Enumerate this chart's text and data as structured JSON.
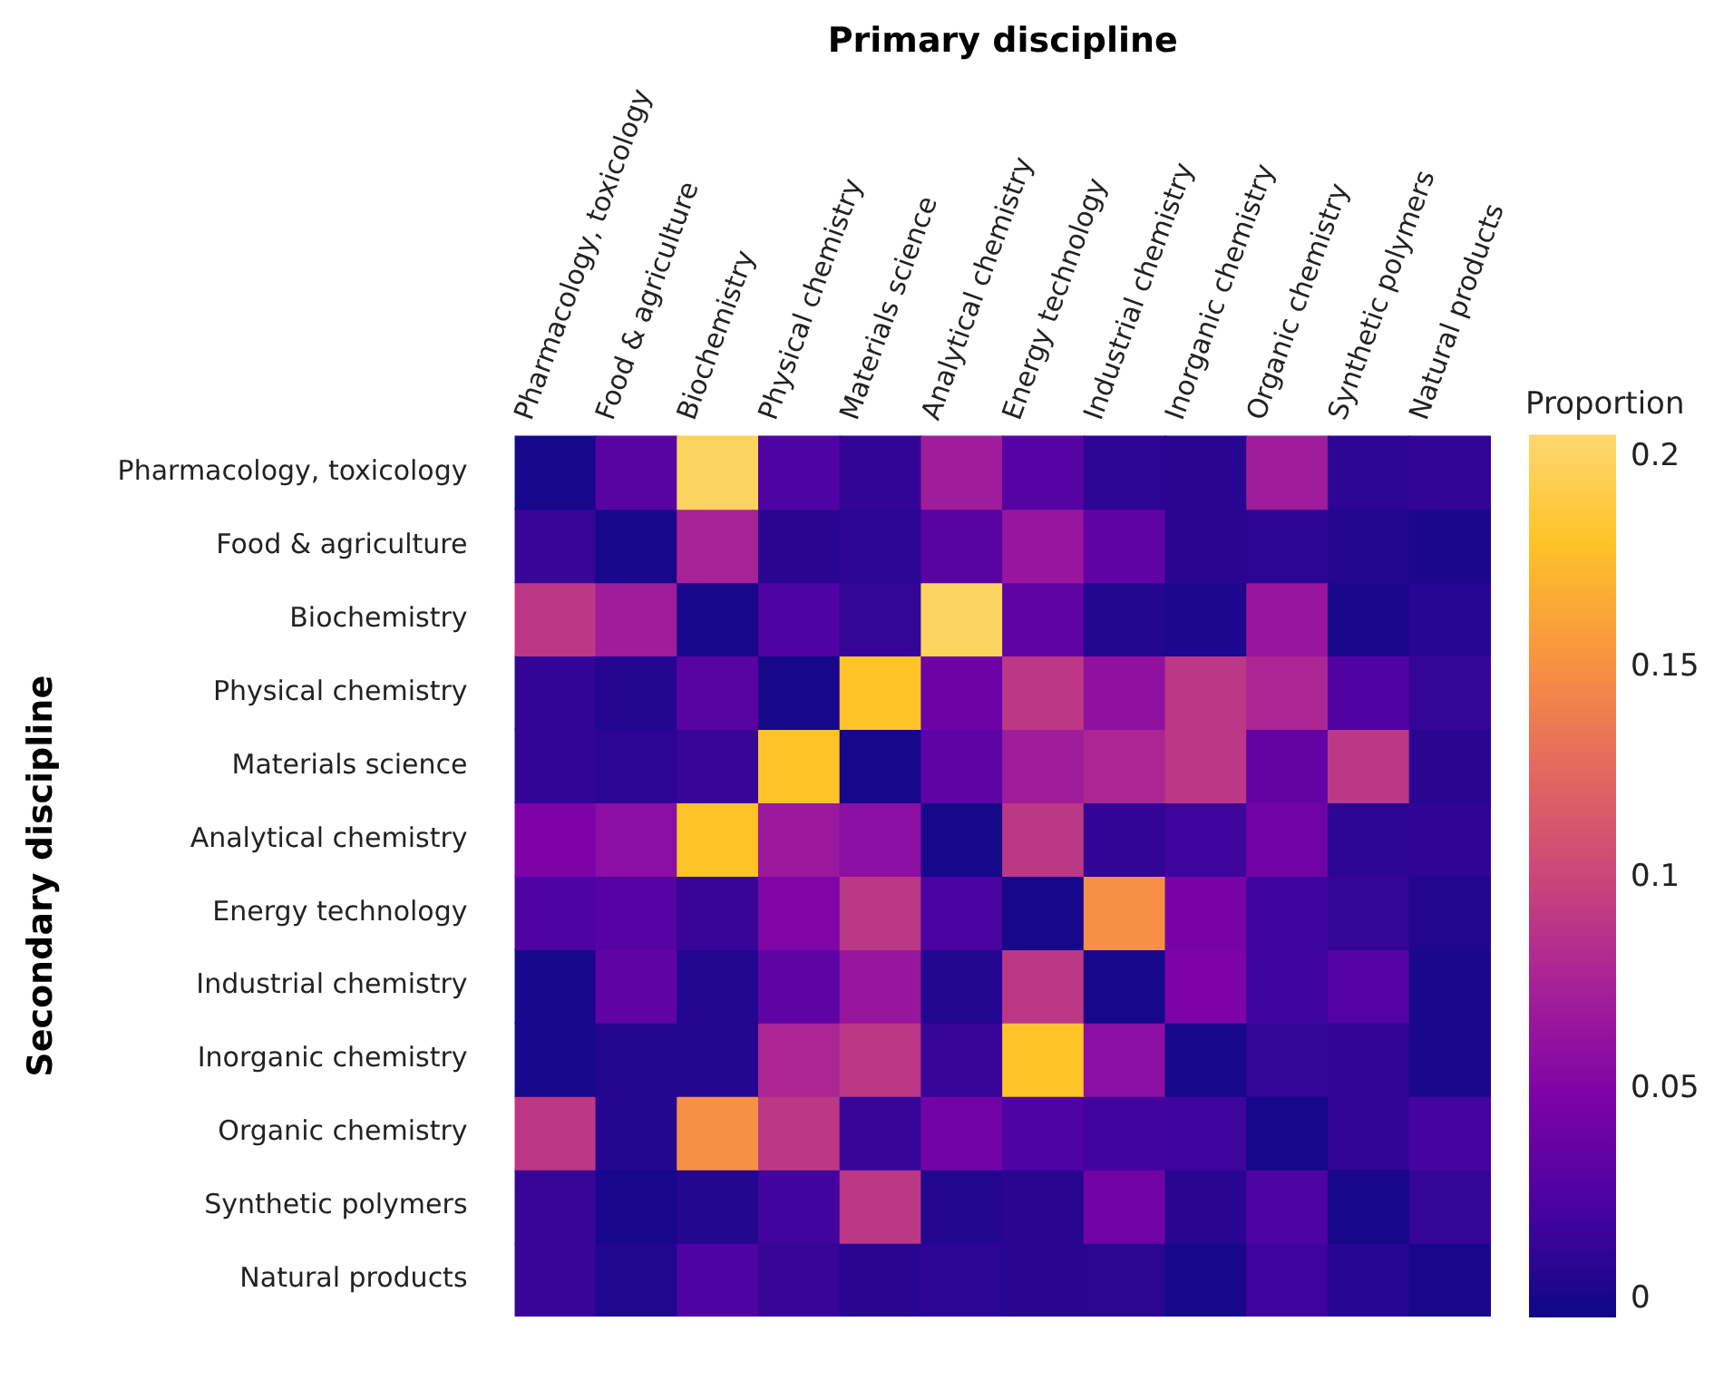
{
  "chart_data": {
    "type": "heatmap",
    "xlabel": "Primary discipline",
    "ylabel": "Secondary discipline",
    "clabel": "Proportion",
    "categories": [
      "Pharmacology, toxicology",
      "Food & agriculture",
      "Biochemistry",
      "Physical chemistry",
      "Materials science",
      "Analytical chemistry",
      "Energy technology",
      "Industrial chemistry",
      "Inorganic chemistry",
      "Organic chemistry",
      "Synthetic polymers",
      "Natural products"
    ],
    "y_categories": [
      "Pharmacology, toxicology",
      "Food & agriculture",
      "Biochemistry",
      "Physical chemistry",
      "Materials science",
      "Analytical chemistry",
      "Energy technology",
      "Industrial chemistry",
      "Inorganic chemistry",
      "Organic chemistry",
      "Synthetic polymers",
      "Natural products"
    ],
    "cells": [
      [
        0.0,
        0.03,
        0.2,
        0.025,
        0.012,
        0.07,
        0.028,
        0.01,
        0.008,
        0.07,
        0.01,
        0.012
      ],
      [
        0.015,
        0.0,
        0.075,
        0.008,
        0.01,
        0.03,
        0.065,
        0.033,
        0.008,
        0.01,
        0.006,
        0.002
      ],
      [
        0.09,
        0.07,
        0.0,
        0.025,
        0.013,
        0.2,
        0.033,
        0.006,
        0.003,
        0.065,
        0.001,
        0.007
      ],
      [
        0.012,
        0.006,
        0.03,
        0.0,
        0.18,
        0.04,
        0.09,
        0.06,
        0.09,
        0.078,
        0.026,
        0.013
      ],
      [
        0.012,
        0.01,
        0.015,
        0.18,
        0.0,
        0.033,
        0.07,
        0.078,
        0.09,
        0.035,
        0.09,
        0.008
      ],
      [
        0.048,
        0.058,
        0.18,
        0.067,
        0.058,
        0.0,
        0.09,
        0.012,
        0.018,
        0.042,
        0.01,
        0.011
      ],
      [
        0.025,
        0.028,
        0.015,
        0.05,
        0.09,
        0.022,
        0.0,
        0.15,
        0.045,
        0.018,
        0.013,
        0.005
      ],
      [
        0.0,
        0.033,
        0.005,
        0.033,
        0.065,
        0.005,
        0.09,
        0.0,
        0.048,
        0.018,
        0.027,
        0.002
      ],
      [
        0.0,
        0.005,
        0.005,
        0.078,
        0.09,
        0.015,
        0.18,
        0.058,
        0.0,
        0.013,
        0.012,
        0.002
      ],
      [
        0.09,
        0.006,
        0.15,
        0.09,
        0.015,
        0.042,
        0.025,
        0.019,
        0.018,
        0.0,
        0.012,
        0.021
      ],
      [
        0.015,
        0.001,
        0.006,
        0.019,
        0.09,
        0.005,
        0.008,
        0.042,
        0.008,
        0.025,
        0.0,
        0.013
      ],
      [
        0.015,
        0.004,
        0.025,
        0.015,
        0.008,
        0.01,
        0.008,
        0.009,
        0.0,
        0.018,
        0.007,
        0.001
      ]
    ],
    "clim": [
      -0.004,
      0.205
    ],
    "cticks": [
      0,
      0.05,
      0.1,
      0.15,
      0.2
    ]
  }
}
